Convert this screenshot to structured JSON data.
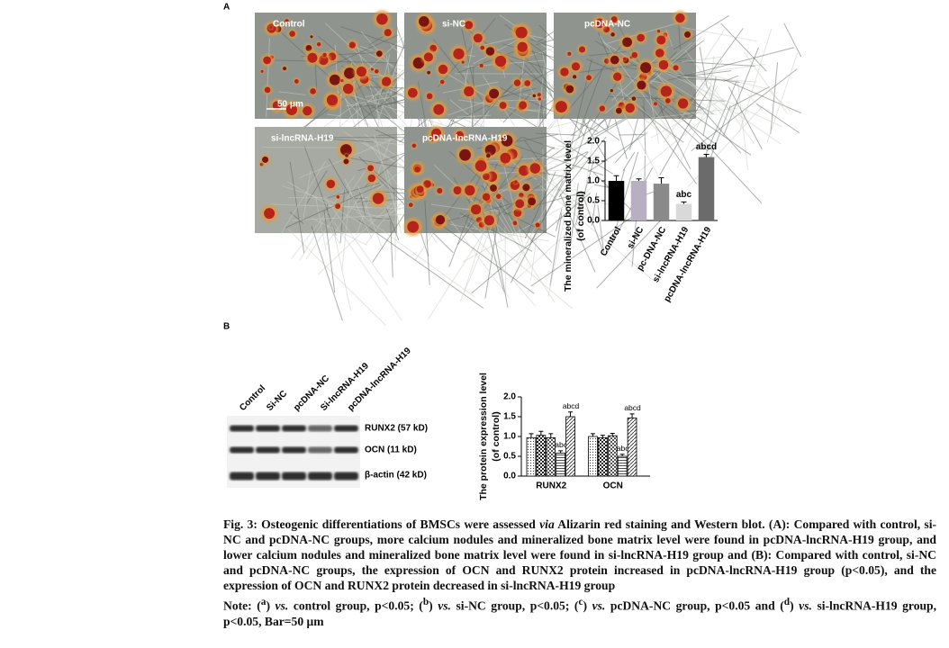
{
  "panel_labels": [
    "A",
    "B"
  ],
  "micrographs": [
    "Control",
    "si-NC",
    "pcDNA-NC",
    "si-lncRNA-H19",
    "pcDNA-lncRNA-H19"
  ],
  "scale_bar": "50 μm",
  "blot": {
    "lanes": [
      "Control",
      "Si-NC",
      "pcDNA-NC",
      "Si-lncRNA-H19",
      "pcDNA-lncRNA-H19"
    ],
    "bands": [
      "RUNX2 (57 kD)",
      "OCN (11 kD)",
      "β-actin (42 kD)"
    ]
  },
  "chart_data": [
    {
      "type": "bar",
      "ylabel": [
        "The mineralized bone matrix level",
        "(of control)"
      ],
      "categories": [
        "Control",
        "si-NC",
        "pc-DNA-NC",
        "si-lncRNA-H19",
        "pcDNA-lncRNA-H19"
      ],
      "values": [
        1.0,
        1.0,
        0.93,
        0.42,
        1.6
      ],
      "errors": [
        0.13,
        0.05,
        0.15,
        0.05,
        0.07
      ],
      "colors": [
        "#000000",
        "#b8b0c2",
        "#8a8a8a",
        "#d9d9d9",
        "#6b6b6b"
      ],
      "significance": [
        null,
        null,
        null,
        "abc",
        "abcd"
      ],
      "ylim": [
        0,
        2.0
      ],
      "yticks": [
        {
          "value": 0,
          "label": "0.0"
        },
        0.5,
        {
          "value": 1,
          "label": "1.0"
        },
        1.5,
        {
          "value": 2,
          "label": "2.0"
        }
      ]
    },
    {
      "type": "bar",
      "ylabel": [
        "The protein expression level",
        "(of control)"
      ],
      "categories": [
        "RUNX2",
        "OCN"
      ],
      "series": [
        {
          "pattern": "dots",
          "values": [
            0.97,
            1.0
          ],
          "errors": [
            0.1,
            0.07
          ]
        },
        {
          "pattern": "checker-dark",
          "values": [
            1.03,
            0.97
          ],
          "errors": [
            0.1,
            0.06
          ]
        },
        {
          "pattern": "checker",
          "values": [
            0.97,
            1.02
          ],
          "errors": [
            0.1,
            0.06
          ]
        },
        {
          "pattern": "hlines",
          "values": [
            0.58,
            0.5
          ],
          "errors": [
            0.06,
            0.05
          ],
          "significance": [
            "abc",
            "abc"
          ]
        },
        {
          "pattern": "diag",
          "values": [
            1.5,
            1.47
          ],
          "errors": [
            0.12,
            0.1
          ],
          "significance": [
            "abcd",
            "abcd"
          ]
        }
      ],
      "ylim": [
        0,
        2.0
      ],
      "yticks": [
        {
          "value": 0,
          "label": "0.0"
        },
        0.5,
        {
          "value": 1,
          "label": "1.0"
        },
        1.5,
        {
          "value": 2,
          "label": "2.0"
        }
      ]
    }
  ],
  "caption": [
    "Fig. 3: Osteogenic differentiations of BMSCs were assessed ",
    "via",
    " Alizarin red staining and Western blot. (A): Compared with control, si-NC and pcDNA-NC groups, more calcium nodules and mineralized bone matrix level were found in pcDNA-lncRNA-H19 group, and lower calcium nodules and mineralized bone matrix level were found in si-lncRNA-H19 group and (B): Compared with control, si-NC and pcDNA-NC groups, the expression of OCN and RUNX2 protein increased in pcDNA-lncRNA-H19 group (p<0.05), and the expression of OCN and RUNX2 protein decreased in si-lncRNA-H19 group"
  ],
  "note": [
    "Note: (",
    "a",
    ") ",
    "vs.",
    " control group, p<0.05; (",
    "b",
    ") ",
    "vs.",
    " si-NC group, p<0.05; (",
    "c",
    ") ",
    "vs.",
    " pcDNA-NC group, p<0.05 and (",
    "d",
    ") ",
    "vs.",
    " si-lncRNA-H19 group, p<0.05, Bar=50 μm"
  ]
}
